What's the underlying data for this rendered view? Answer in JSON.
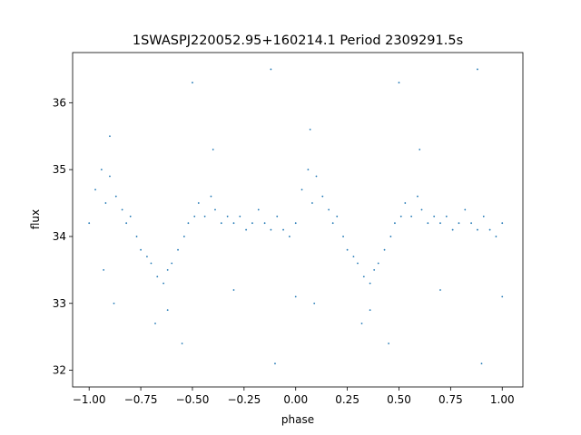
{
  "chart_data": {
    "type": "scatter",
    "title": "1SWASPJ220052.95+160214.1 Period 2309291.5s",
    "xlabel": "phase",
    "ylabel": "flux",
    "xlim": [
      -1.08,
      1.1
    ],
    "ylim": [
      31.75,
      36.75
    ],
    "xticks": [
      -1.0,
      -0.75,
      -0.5,
      -0.25,
      0.0,
      0.25,
      0.5,
      0.75,
      1.0
    ],
    "xtick_labels": [
      "−1.00",
      "−0.75",
      "−0.50",
      "−0.25",
      "0.00",
      "0.25",
      "0.50",
      "0.75",
      "1.00"
    ],
    "yticks": [
      32,
      33,
      34,
      35,
      36
    ],
    "ytick_labels": [
      "32",
      "33",
      "34",
      "35",
      "36"
    ],
    "grid": false,
    "legend": "none",
    "marker_color": "#1f77b4",
    "series": [
      {
        "points": [
          {
            "x": -1.0,
            "y": 34.2
          },
          {
            "x": -0.97,
            "y": 34.7
          },
          {
            "x": -0.94,
            "y": 35.0
          },
          {
            "x": -0.92,
            "y": 34.5
          },
          {
            "x": -0.9,
            "y": 34.9
          },
          {
            "x": -0.87,
            "y": 34.6
          },
          {
            "x": -0.84,
            "y": 34.4
          },
          {
            "x": -0.82,
            "y": 34.2
          },
          {
            "x": -0.8,
            "y": 34.3
          },
          {
            "x": -0.77,
            "y": 34.0
          },
          {
            "x": -0.75,
            "y": 33.8
          },
          {
            "x": -0.72,
            "y": 33.7
          },
          {
            "x": -0.7,
            "y": 33.6
          },
          {
            "x": -0.67,
            "y": 33.4
          },
          {
            "x": -0.64,
            "y": 33.3
          },
          {
            "x": -0.62,
            "y": 33.5
          },
          {
            "x": -0.6,
            "y": 33.6
          },
          {
            "x": -0.57,
            "y": 33.8
          },
          {
            "x": -0.54,
            "y": 34.0
          },
          {
            "x": -0.52,
            "y": 34.2
          },
          {
            "x": -0.49,
            "y": 34.3
          },
          {
            "x": -0.47,
            "y": 34.5
          },
          {
            "x": -0.44,
            "y": 34.3
          },
          {
            "x": -0.41,
            "y": 34.6
          },
          {
            "x": -0.39,
            "y": 34.4
          },
          {
            "x": -0.36,
            "y": 34.2
          },
          {
            "x": -0.33,
            "y": 34.3
          },
          {
            "x": -0.3,
            "y": 34.2
          },
          {
            "x": -0.27,
            "y": 34.3
          },
          {
            "x": -0.24,
            "y": 34.1
          },
          {
            "x": -0.21,
            "y": 34.2
          },
          {
            "x": -0.18,
            "y": 34.4
          },
          {
            "x": -0.15,
            "y": 34.2
          },
          {
            "x": -0.12,
            "y": 34.1
          },
          {
            "x": -0.09,
            "y": 34.3
          },
          {
            "x": -0.06,
            "y": 34.1
          },
          {
            "x": -0.03,
            "y": 34.0
          },
          {
            "x": 0.0,
            "y": 34.2
          },
          {
            "x": 0.03,
            "y": 34.7
          },
          {
            "x": 0.06,
            "y": 35.0
          },
          {
            "x": 0.08,
            "y": 34.5
          },
          {
            "x": 0.1,
            "y": 34.9
          },
          {
            "x": 0.13,
            "y": 34.6
          },
          {
            "x": 0.16,
            "y": 34.4
          },
          {
            "x": 0.18,
            "y": 34.2
          },
          {
            "x": 0.2,
            "y": 34.3
          },
          {
            "x": 0.23,
            "y": 34.0
          },
          {
            "x": 0.25,
            "y": 33.8
          },
          {
            "x": 0.28,
            "y": 33.7
          },
          {
            "x": 0.3,
            "y": 33.6
          },
          {
            "x": 0.33,
            "y": 33.4
          },
          {
            "x": 0.36,
            "y": 33.3
          },
          {
            "x": 0.38,
            "y": 33.5
          },
          {
            "x": 0.4,
            "y": 33.6
          },
          {
            "x": 0.43,
            "y": 33.8
          },
          {
            "x": 0.46,
            "y": 34.0
          },
          {
            "x": 0.48,
            "y": 34.2
          },
          {
            "x": 0.51,
            "y": 34.3
          },
          {
            "x": 0.53,
            "y": 34.5
          },
          {
            "x": 0.56,
            "y": 34.3
          },
          {
            "x": 0.59,
            "y": 34.6
          },
          {
            "x": 0.61,
            "y": 34.4
          },
          {
            "x": 0.64,
            "y": 34.2
          },
          {
            "x": 0.67,
            "y": 34.3
          },
          {
            "x": 0.7,
            "y": 34.2
          },
          {
            "x": 0.73,
            "y": 34.3
          },
          {
            "x": 0.76,
            "y": 34.1
          },
          {
            "x": 0.79,
            "y": 34.2
          },
          {
            "x": 0.82,
            "y": 34.4
          },
          {
            "x": 0.85,
            "y": 34.2
          },
          {
            "x": 0.88,
            "y": 34.1
          },
          {
            "x": 0.91,
            "y": 34.3
          },
          {
            "x": 0.94,
            "y": 34.1
          },
          {
            "x": 0.97,
            "y": 34.0
          },
          {
            "x": 1.0,
            "y": 34.2
          },
          {
            "x": -0.93,
            "y": 33.5
          },
          {
            "x": -0.9,
            "y": 35.5
          },
          {
            "x": -0.88,
            "y": 33.0
          },
          {
            "x": -0.68,
            "y": 32.7
          },
          {
            "x": -0.62,
            "y": 32.9
          },
          {
            "x": -0.55,
            "y": 32.4
          },
          {
            "x": -0.5,
            "y": 36.3
          },
          {
            "x": -0.4,
            "y": 35.3
          },
          {
            "x": -0.3,
            "y": 33.2
          },
          {
            "x": -0.12,
            "y": 36.5
          },
          {
            "x": -0.1,
            "y": 32.1
          },
          {
            "x": 0.0,
            "y": 33.1
          },
          {
            "x": 0.07,
            "y": 35.6
          },
          {
            "x": 0.09,
            "y": 33.0
          },
          {
            "x": 0.32,
            "y": 32.7
          },
          {
            "x": 0.36,
            "y": 32.9
          },
          {
            "x": 0.45,
            "y": 32.4
          },
          {
            "x": 0.5,
            "y": 36.3
          },
          {
            "x": 0.6,
            "y": 35.3
          },
          {
            "x": 0.7,
            "y": 33.2
          },
          {
            "x": 0.88,
            "y": 36.5
          },
          {
            "x": 0.9,
            "y": 32.1
          },
          {
            "x": 1.0,
            "y": 33.1
          }
        ]
      }
    ]
  }
}
